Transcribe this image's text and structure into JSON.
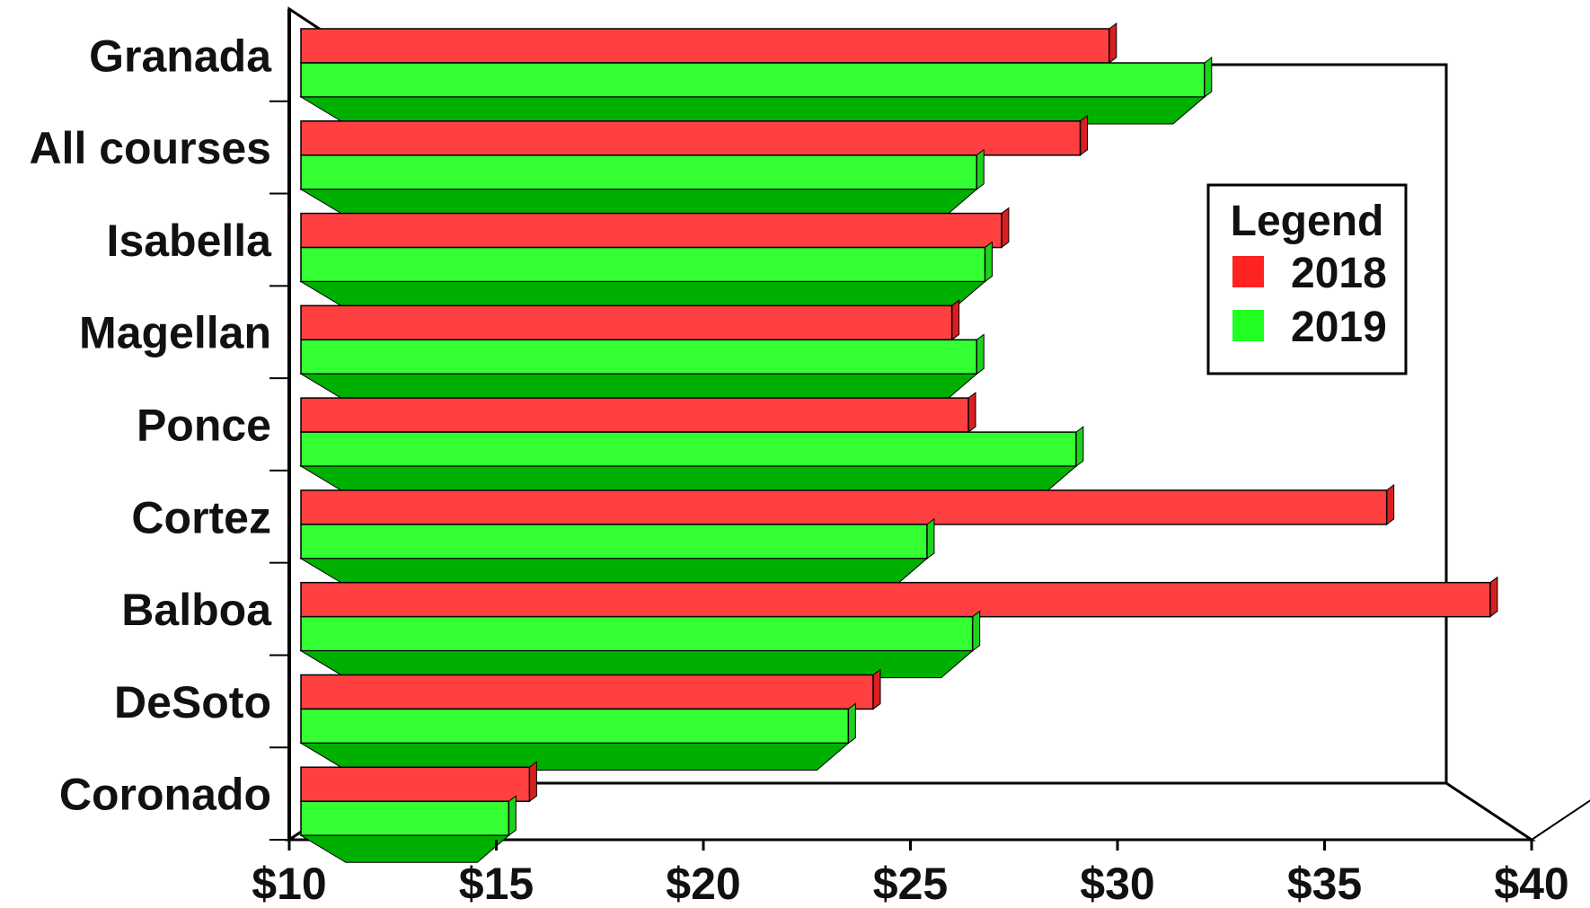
{
  "chart_data": {
    "type": "bar",
    "orientation": "horizontal",
    "style": "3d",
    "categories": [
      "Granada",
      "All courses",
      "Isabella",
      "Magellan",
      "Ponce",
      "Cortez",
      "Balboa",
      "DeSoto",
      "Coronado"
    ],
    "series": [
      {
        "name": "2018",
        "color": "#ff4040",
        "values": [
          29.8,
          29.1,
          27.2,
          26.0,
          26.4,
          36.5,
          39.0,
          24.1,
          15.8
        ]
      },
      {
        "name": "2019",
        "color": "#33ff33",
        "values": [
          32.1,
          26.6,
          26.8,
          26.6,
          29.0,
          25.4,
          26.5,
          23.5,
          15.3
        ]
      }
    ],
    "title": "",
    "xlabel": "",
    "ylabel": "",
    "xlim": [
      10,
      40
    ],
    "x_tick_labels": [
      "$10",
      "$15",
      "$20",
      "$25",
      "$30",
      "$35",
      "$40"
    ],
    "grid": true,
    "legend": {
      "title": "Legend",
      "placement": "right"
    },
    "colors": {
      "red_front": "#ff4040",
      "red_dark": "#c00000",
      "red_side": "#d91f1f",
      "green_front": "#33ff33",
      "green_dark": "#00b000",
      "green_side": "#1fd11f",
      "axis": "#000000",
      "background": "#ffffff"
    }
  }
}
